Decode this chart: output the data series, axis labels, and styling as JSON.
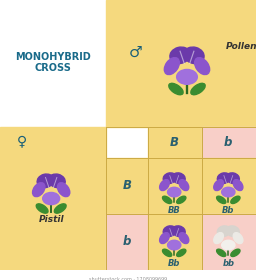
{
  "title": "MONOHYBRID\nCROSS",
  "title_color": "#1a6b8a",
  "bg_yellow": "#f5d97e",
  "bg_pink": "#f8cfc8",
  "pollen_label": "Pollen",
  "pistil_label": "Pistil",
  "male_symbol": "♂",
  "female_symbol": "♀",
  "allele_B": "B",
  "allele_b": "b",
  "genotype_BB": "BB",
  "genotype_Bb1": "Bb",
  "genotype_Bb2": "Bb",
  "genotype_bb": "bb",
  "label_color": "#2a6070",
  "shutterstock_text": "shutterstock.com · 1708099699",
  "grid_color": "#ccaa44",
  "petal_dark": "#6b3aaa",
  "petal_mid": "#8b55cc",
  "petal_light": "#a070dd",
  "petal_white1": "#eceae6",
  "petal_white2": "#f5f3f0",
  "leaf_color": "#3a8c30",
  "symbol_color": "#1a5f78"
}
